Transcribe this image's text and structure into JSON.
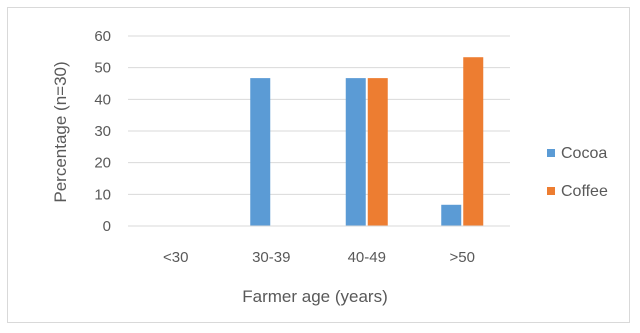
{
  "chart_data": {
    "type": "bar",
    "title": "",
    "xlabel": "Farmer age (years)",
    "ylabel": "Percentage (n=30)",
    "categories": [
      "<30",
      "30-39",
      "40-49",
      ">50"
    ],
    "series": [
      {
        "name": "Cocoa",
        "values": [
          0,
          46.7,
          46.7,
          6.7
        ],
        "color": "#5b9bd5"
      },
      {
        "name": "Coffee",
        "values": [
          0,
          0,
          46.7,
          53.3
        ],
        "color": "#ed7d31"
      }
    ],
    "ylim": [
      0,
      60
    ],
    "yticks": [
      "0",
      "10",
      "20",
      "30",
      "40",
      "50",
      "60"
    ],
    "grid": true,
    "legend_position": "right"
  }
}
